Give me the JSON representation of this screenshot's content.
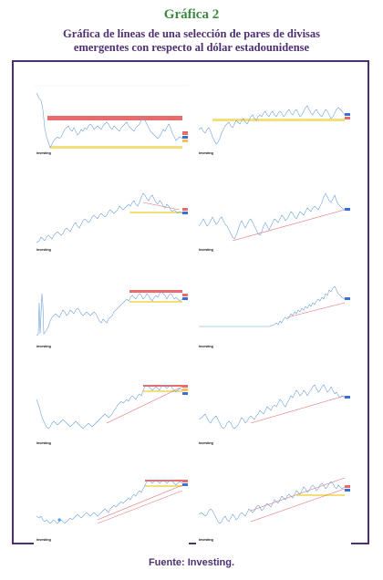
{
  "figure": {
    "title": "Gráfica 2",
    "subtitle_line1": "Gráfica de líneas de una selección de pares de divisas",
    "subtitle_line2": "emergentes con respecto al dólar estadounidense",
    "source": "Fuente: Investing."
  },
  "chart_common": {
    "watermark": "Investing",
    "line_color": "#6fa3d8",
    "red_band_color": "#e86a6a",
    "yellow_band_color": "#f4e07a",
    "trend_color": "#e06a6a"
  }
}
